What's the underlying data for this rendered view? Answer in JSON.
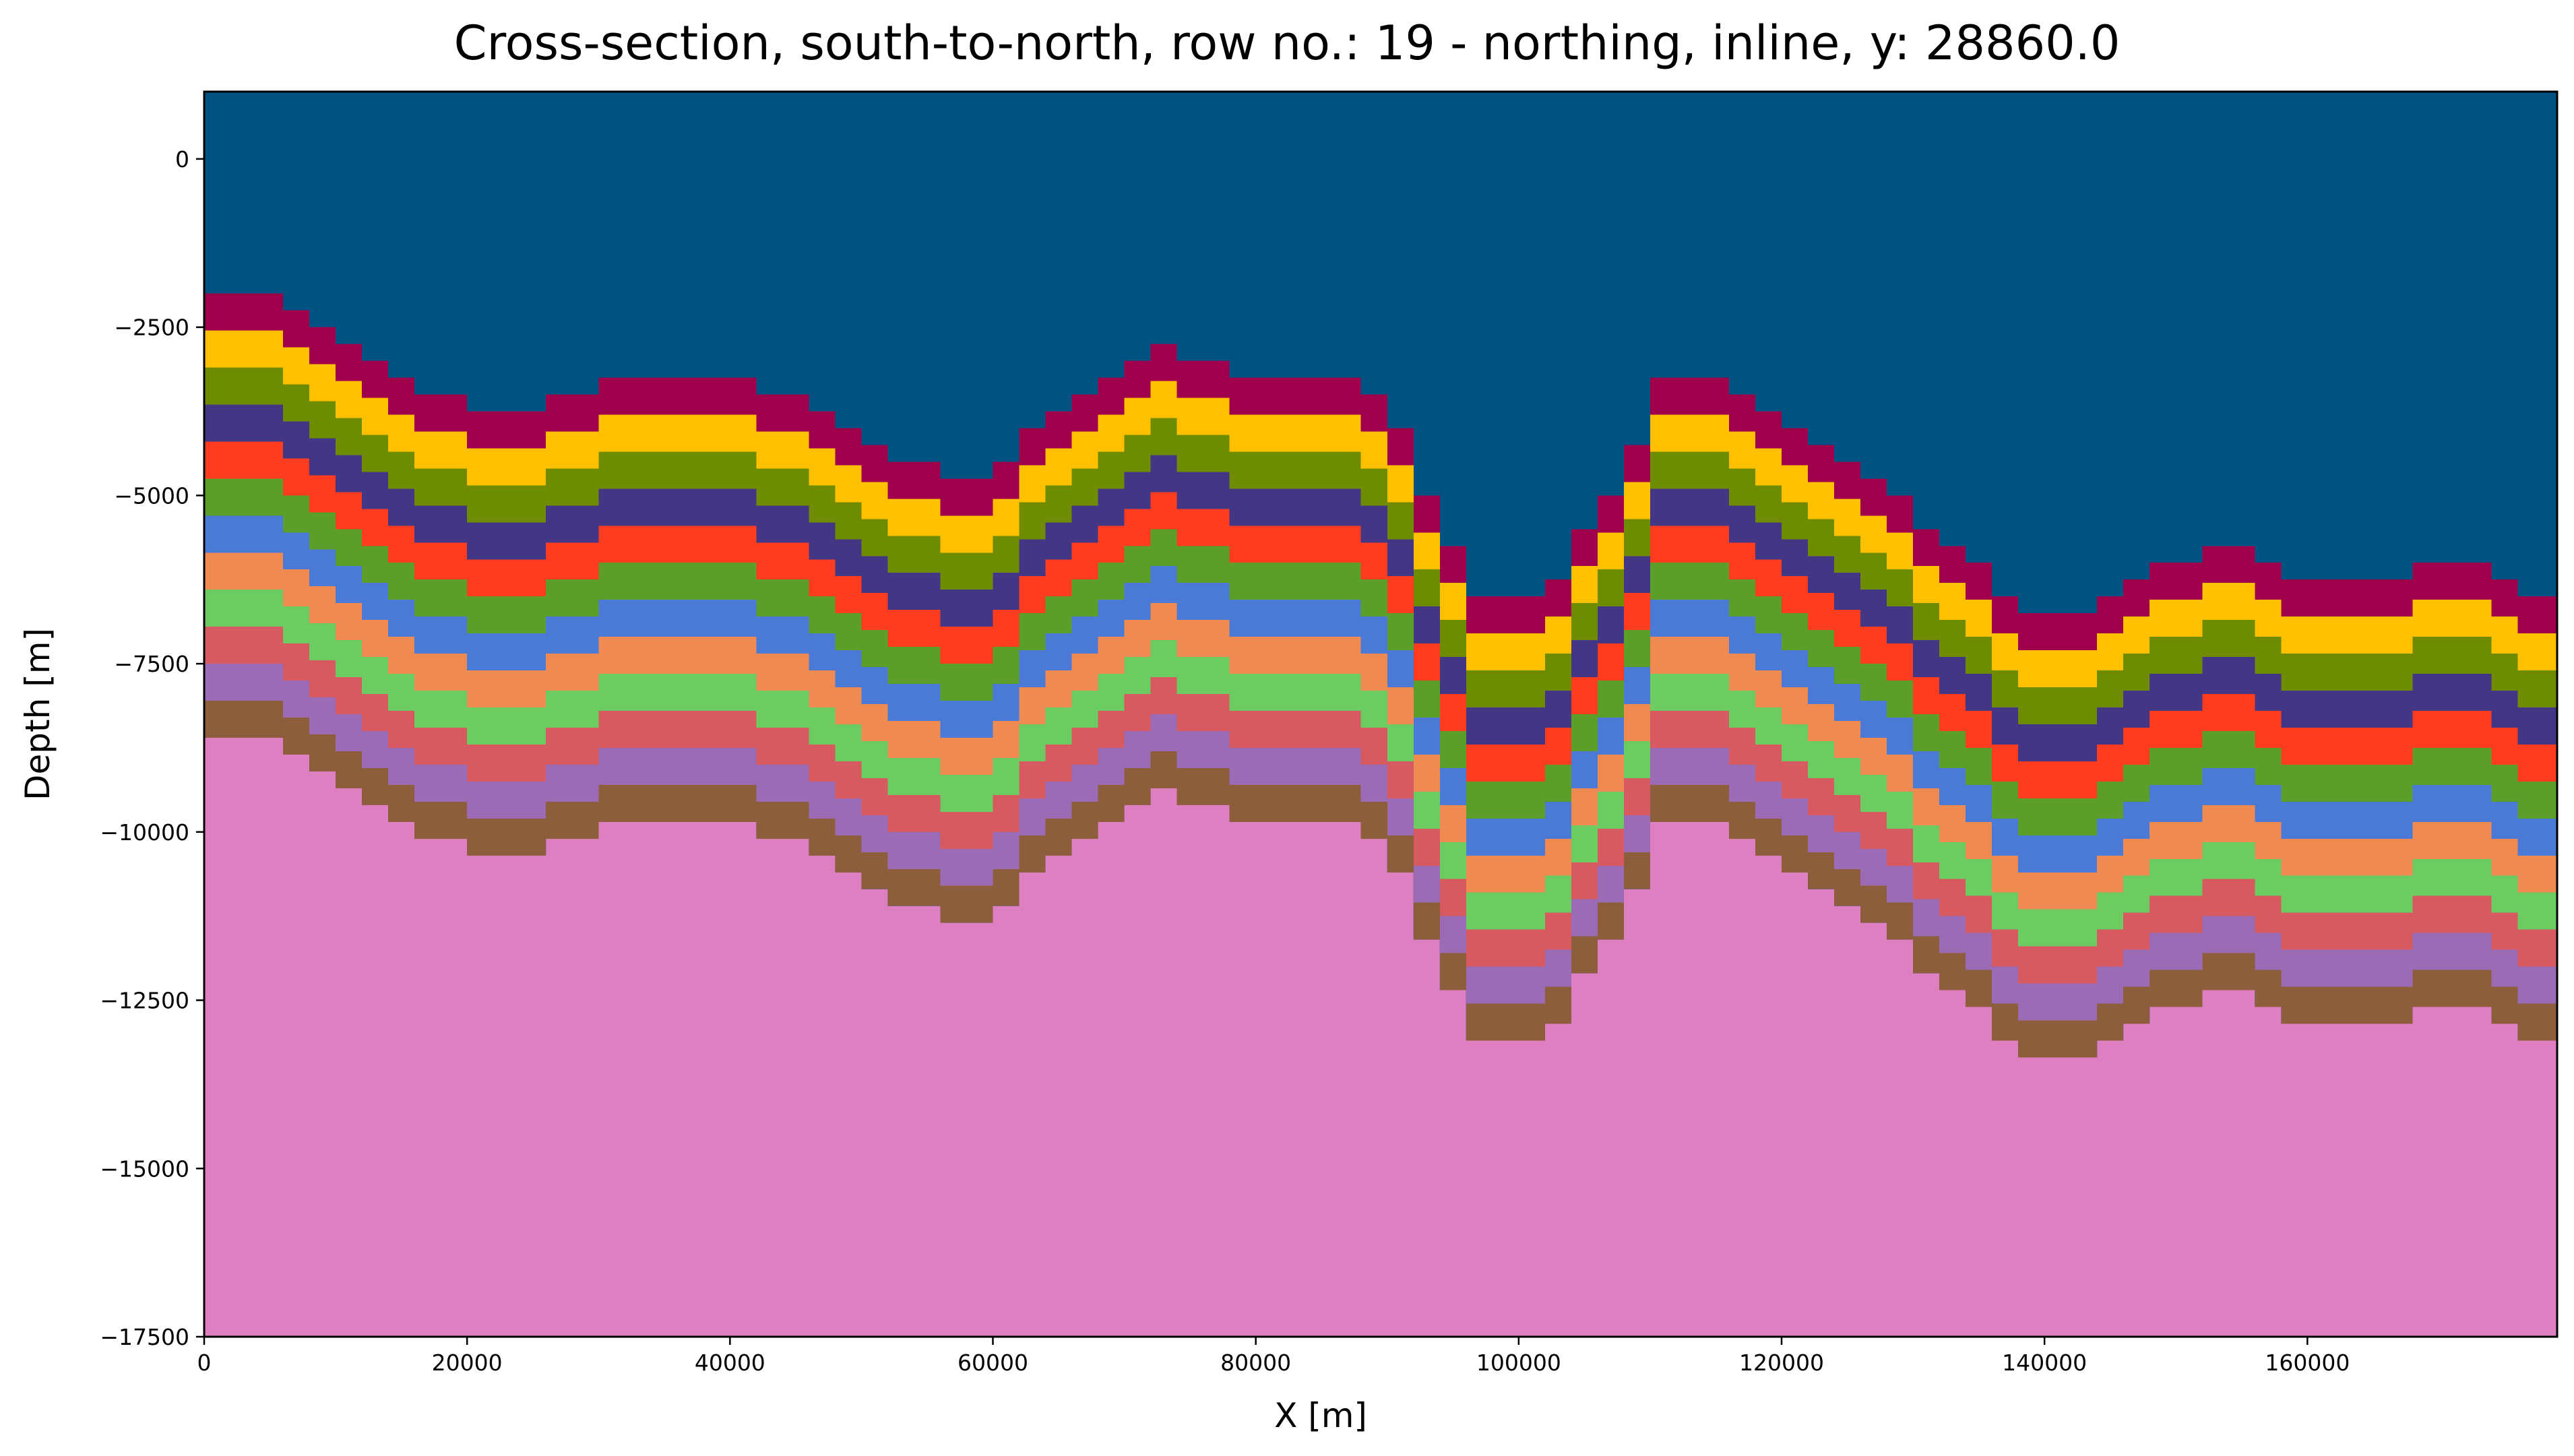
{
  "chart_data": {
    "type": "heatmap",
    "title": "Cross-section, south-to-north, row no.: 19 - northing, inline, y: 28860.0",
    "xlabel": "X [m]",
    "ylabel": "Depth [m]",
    "xlim": [
      0,
      179000
    ],
    "ylim": [
      -17500,
      1000
    ],
    "xticks": [
      0,
      20000,
      40000,
      60000,
      80000,
      100000,
      120000,
      140000,
      160000
    ],
    "yticks": [
      0,
      -2500,
      -5000,
      -7500,
      -10000,
      -12500,
      -15000,
      -17500
    ],
    "grid": false,
    "background_color": "#005282",
    "basement_color": "#dd7fc0",
    "layer_colors": [
      "#a0004b",
      "#ffc000",
      "#6f8c00",
      "#433785",
      "#ff3c1f",
      "#5c9e2a",
      "#4a7ad6",
      "#ee8a52",
      "#6ccc62",
      "#d65a60",
      "#9b6bb6",
      "#8c5e3c"
    ],
    "layer_thickness_m": 550,
    "surface_profile": {
      "x": [
        0,
        5000,
        10000,
        15000,
        20000,
        25000,
        30000,
        35000,
        40000,
        45000,
        50000,
        55000,
        58000,
        62000,
        66000,
        70000,
        72000,
        75000,
        80000,
        85000,
        88000,
        90000,
        92000,
        94000,
        96000,
        98000,
        100000,
        102000,
        104000,
        106000,
        108000,
        110000,
        112000,
        114000,
        116000,
        120000,
        125000,
        130000,
        135000,
        138000,
        140000,
        142000,
        145000,
        150000,
        153000,
        156000,
        160000,
        163000,
        166000,
        170000,
        172000,
        175000,
        179000
      ],
      "top_depth": [
        -2000,
        -2000,
        -2600,
        -3200,
        -3700,
        -3700,
        -3300,
        -3300,
        -3300,
        -3600,
        -4200,
        -4600,
        -4800,
        -4300,
        -3600,
        -3000,
        -2800,
        -3000,
        -3300,
        -3300,
        -3300,
        -3600,
        -4400,
        -5400,
        -6200,
        -6600,
        -6400,
        -6400,
        -5900,
        -5300,
        -4800,
        -3500,
        -3200,
        -3200,
        -3300,
        -3800,
        -4400,
        -5200,
        -6100,
        -6700,
        -6900,
        -6800,
        -6400,
        -6000,
        -5700,
        -5900,
        -6300,
        -6300,
        -6200,
        -6100,
        -6000,
        -6300,
        -6500
      ]
    }
  }
}
